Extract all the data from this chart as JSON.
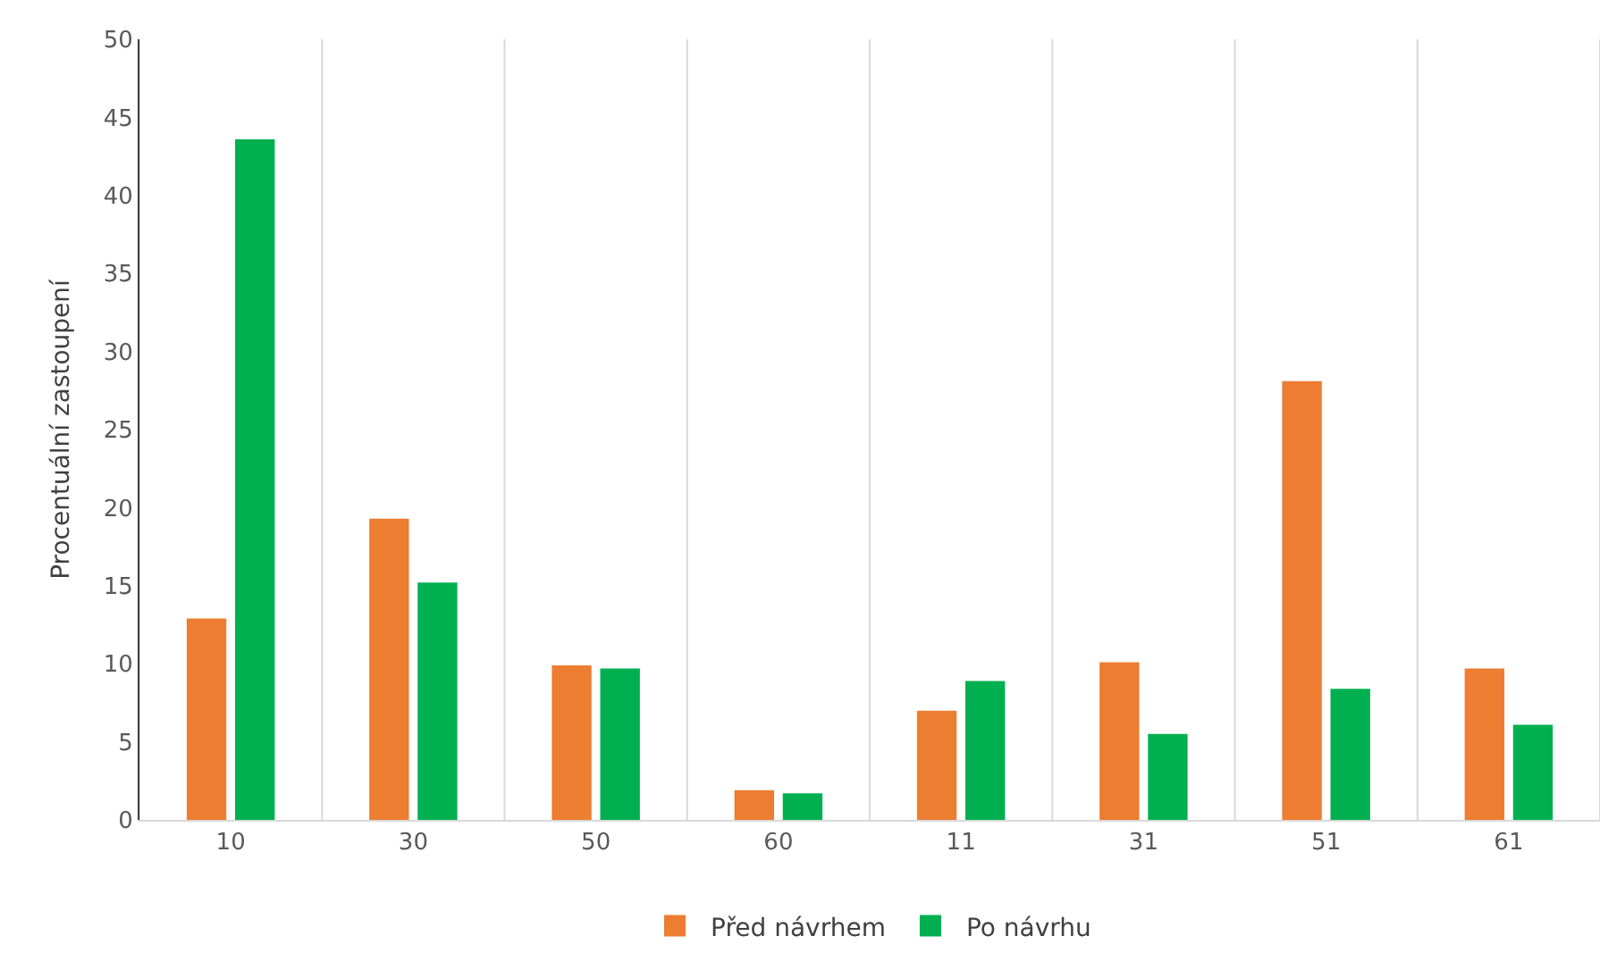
{
  "chart_data": {
    "type": "bar",
    "ylabel": "Procentuální zastoupení",
    "categories": [
      "10",
      "30",
      "50",
      "60",
      "11",
      "31",
      "51",
      "61"
    ],
    "series": [
      {
        "name": "Před návrhem",
        "color": "#ed7d31",
        "values": [
          12.9,
          19.3,
          9.9,
          1.9,
          7.0,
          10.1,
          28.1,
          9.7
        ]
      },
      {
        "name": "Po návrhu",
        "color": "#00b050",
        "values": [
          43.6,
          15.2,
          9.7,
          1.7,
          8.9,
          5.5,
          8.4,
          6.1
        ]
      }
    ],
    "ylim": [
      0,
      50
    ],
    "yticks": [
      0,
      5,
      10,
      15,
      20,
      25,
      30,
      35,
      40,
      45,
      50
    ],
    "grid": "x",
    "legend": "bottom"
  }
}
